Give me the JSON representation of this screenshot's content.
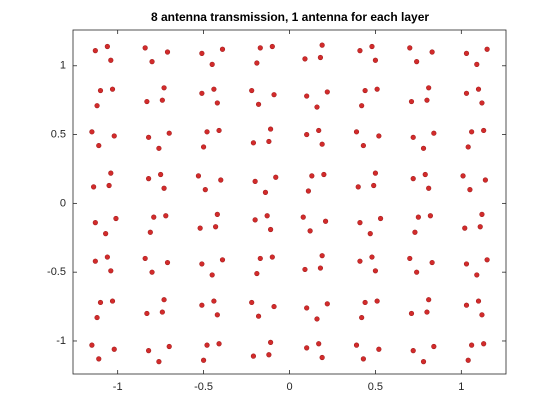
{
  "chart_data": {
    "type": "scatter",
    "title": "8 antenna transmission, 1 antenna for each layer",
    "color": "#d22b2b",
    "xlim": [
      -1.26,
      1.26
    ],
    "ylim": [
      -1.24,
      1.26
    ],
    "xticks": [
      -1,
      -0.5,
      0,
      0.5,
      1
    ],
    "yticks": [
      -1,
      -0.5,
      0,
      0.5,
      1
    ],
    "x": [
      -1.13,
      -1.04,
      -1.06,
      -0.71,
      -0.8,
      -0.84,
      -0.45,
      -0.51,
      -0.39,
      -0.17,
      -0.1,
      -0.19,
      0.18,
      0.09,
      0.19,
      0.41,
      0.5,
      0.48,
      0.83,
      0.74,
      0.7,
      1.09,
      1.03,
      1.15,
      -1.1,
      -1.03,
      -1.12,
      -0.74,
      -0.83,
      -0.73,
      -0.51,
      -0.42,
      -0.44,
      -0.09,
      -0.18,
      -0.22,
      0.16,
      0.1,
      0.22,
      0.44,
      0.51,
      0.42,
      0.8,
      0.71,
      0.81,
      1.03,
      1.12,
      1.1,
      -1.02,
      -1.11,
      -1.15,
      -0.76,
      -0.82,
      -0.7,
      -0.48,
      -0.41,
      -0.5,
      -0.12,
      -0.21,
      -0.11,
      0.1,
      0.19,
      0.17,
      0.52,
      0.43,
      0.39,
      0.78,
      0.72,
      0.84,
      1.06,
      1.13,
      1.04,
      -1.05,
      -1.14,
      -1.04,
      -0.82,
      -0.73,
      -0.75,
      -0.4,
      -0.49,
      -0.53,
      -0.14,
      -0.2,
      -0.08,
      0.13,
      0.2,
      0.11,
      0.49,
      0.4,
      0.5,
      0.72,
      0.81,
      0.79,
      1.14,
      1.05,
      1.01,
      -1.07,
      -1.13,
      -1.01,
      -0.79,
      -0.72,
      -0.81,
      -0.43,
      -0.52,
      -0.42,
      -0.2,
      -0.11,
      -0.13,
      0.21,
      0.12,
      0.08,
      0.47,
      0.41,
      0.53,
      0.75,
      0.82,
      0.73,
      1.11,
      1.02,
      1.12,
      -1.13,
      -1.04,
      -1.06,
      -0.71,
      -0.8,
      -0.84,
      -0.45,
      -0.51,
      -0.39,
      -0.17,
      -0.1,
      -0.19,
      0.18,
      0.09,
      0.19,
      0.41,
      0.5,
      0.48,
      0.83,
      0.74,
      0.7,
      1.09,
      1.03,
      1.15,
      -1.1,
      -1.03,
      -1.12,
      -0.74,
      -0.83,
      -0.73,
      -0.51,
      -0.42,
      -0.44,
      -0.09,
      -0.18,
      -0.22,
      0.16,
      0.1,
      0.22,
      0.44,
      0.51,
      0.42,
      0.8,
      0.71,
      0.81,
      1.03,
      1.12,
      1.1,
      -1.02,
      -1.11,
      -1.15,
      -0.76,
      -0.82,
      -0.7,
      -0.48,
      -0.41,
      -0.5,
      -0.12,
      -0.21,
      -0.11,
      0.1,
      0.19,
      0.17,
      0.52,
      0.43,
      0.39,
      0.78,
      0.72,
      0.84,
      1.06,
      1.13,
      1.04
    ],
    "values": [
      1.11,
      1.04,
      1.14,
      1.1,
      1.03,
      1.13,
      1.01,
      1.09,
      1.12,
      1.13,
      1.14,
      1.02,
      1.06,
      1.05,
      1.15,
      1.11,
      1.04,
      1.14,
      1.1,
      1.03,
      1.13,
      1.01,
      1.09,
      1.12,
      0.82,
      0.83,
      0.71,
      0.75,
      0.74,
      0.84,
      0.8,
      0.73,
      0.83,
      0.79,
      0.72,
      0.82,
      0.7,
      0.78,
      0.81,
      0.82,
      0.83,
      0.71,
      0.75,
      0.74,
      0.84,
      0.8,
      0.73,
      0.83,
      0.49,
      0.42,
      0.52,
      0.4,
      0.48,
      0.51,
      0.52,
      0.53,
      0.41,
      0.45,
      0.44,
      0.54,
      0.5,
      0.43,
      0.53,
      0.49,
      0.42,
      0.52,
      0.4,
      0.48,
      0.51,
      0.52,
      0.53,
      0.41,
      0.13,
      0.12,
      0.22,
      0.18,
      0.11,
      0.21,
      0.17,
      0.1,
      0.2,
      0.08,
      0.16,
      0.19,
      0.2,
      0.21,
      0.09,
      0.13,
      0.12,
      0.22,
      0.18,
      0.11,
      0.21,
      0.17,
      0.1,
      0.2,
      -0.22,
      -0.14,
      -0.11,
      -0.1,
      -0.09,
      -0.21,
      -0.17,
      -0.18,
      -0.08,
      -0.12,
      -0.19,
      -0.09,
      -0.13,
      -0.2,
      -0.1,
      -0.22,
      -0.14,
      -0.11,
      -0.1,
      -0.09,
      -0.21,
      -0.17,
      -0.18,
      -0.08,
      -0.42,
      -0.49,
      -0.39,
      -0.43,
      -0.5,
      -0.4,
      -0.52,
      -0.44,
      -0.41,
      -0.4,
      -0.39,
      -0.51,
      -0.47,
      -0.48,
      -0.38,
      -0.42,
      -0.49,
      -0.39,
      -0.43,
      -0.5,
      -0.4,
      -0.52,
      -0.44,
      -0.41,
      -0.72,
      -0.71,
      -0.83,
      -0.79,
      -0.8,
      -0.7,
      -0.74,
      -0.81,
      -0.71,
      -0.75,
      -0.82,
      -0.72,
      -0.84,
      -0.76,
      -0.73,
      -0.72,
      -0.71,
      -0.83,
      -0.79,
      -0.8,
      -0.7,
      -0.74,
      -0.81,
      -0.71,
      -1.06,
      -1.13,
      -1.03,
      -1.15,
      -1.07,
      -1.04,
      -1.03,
      -1.02,
      -1.14,
      -1.1,
      -1.11,
      -1.01,
      -1.05,
      -1.12,
      -1.02,
      -1.06,
      -1.13,
      -1.03,
      -1.15,
      -1.07,
      -1.04,
      -1.03,
      -1.02,
      -1.14
    ]
  }
}
